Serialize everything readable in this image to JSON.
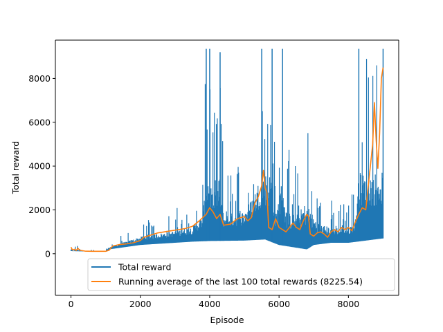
{
  "chart_data": {
    "type": "line",
    "title": "",
    "xlabel": "Episode",
    "ylabel": "Total reward",
    "xlim": [
      -450,
      9450
    ],
    "ylim": [
      -1900,
      9750
    ],
    "x_ticks": [
      0,
      2000,
      4000,
      6000,
      8000
    ],
    "x_tick_labels": [
      "0",
      "2000",
      "4000",
      "6000",
      "8000"
    ],
    "y_ticks": [
      0,
      2000,
      4000,
      6000,
      8000
    ],
    "y_tick_labels": [
      "0",
      "2000",
      "4000",
      "6000",
      "8000"
    ],
    "grid": false,
    "legend_position": "lower center",
    "series": [
      {
        "name": "Total reward",
        "color": "#1f77b4",
        "style": "noisy band",
        "lower_envelope": [
          [
            0,
            120
          ],
          [
            500,
            100
          ],
          [
            1000,
            100
          ],
          [
            1100,
            200
          ],
          [
            2000,
            400
          ],
          [
            3000,
            500
          ],
          [
            3500,
            550
          ],
          [
            4000,
            580
          ],
          [
            5000,
            600
          ],
          [
            5600,
            650
          ],
          [
            6000,
            400
          ],
          [
            6800,
            200
          ],
          [
            7000,
            400
          ],
          [
            7500,
            500
          ],
          [
            8000,
            500
          ],
          [
            8500,
            600
          ],
          [
            9000,
            700
          ]
        ],
        "upper_envelope": [
          [
            0,
            420
          ],
          [
            60,
            140
          ],
          [
            150,
            420
          ],
          [
            300,
            200
          ],
          [
            1000,
            200
          ],
          [
            1100,
            500
          ],
          [
            1500,
            900
          ],
          [
            2200,
            1700
          ],
          [
            2800,
            1900
          ],
          [
            3500,
            2500
          ],
          [
            3800,
            4000
          ],
          [
            3900,
            9350
          ],
          [
            4000,
            9350
          ],
          [
            4100,
            6000
          ],
          [
            4300,
            9200
          ],
          [
            4400,
            4000
          ],
          [
            5000,
            4500
          ],
          [
            5200,
            6000
          ],
          [
            5300,
            7000
          ],
          [
            5500,
            9350
          ],
          [
            5800,
            9350
          ],
          [
            5900,
            4200
          ],
          [
            6100,
            9350
          ],
          [
            6200,
            5000
          ],
          [
            6500,
            4500
          ],
          [
            6800,
            6500
          ],
          [
            7000,
            4000
          ],
          [
            7200,
            3000
          ],
          [
            7500,
            2500
          ],
          [
            7800,
            2500
          ],
          [
            8000,
            2500
          ],
          [
            8200,
            3500
          ],
          [
            8300,
            9350
          ],
          [
            9000,
            9350
          ]
        ]
      },
      {
        "name": "Running average of the last 100 total rewards (8225.54)",
        "color": "#ff7f0e",
        "points": [
          [
            0,
            300
          ],
          [
            40,
            180
          ],
          [
            100,
            200
          ],
          [
            150,
            150
          ],
          [
            200,
            250
          ],
          [
            250,
            160
          ],
          [
            400,
            120
          ],
          [
            600,
            110
          ],
          [
            800,
            110
          ],
          [
            1000,
            110
          ],
          [
            1100,
            160
          ],
          [
            1200,
            350
          ],
          [
            1400,
            420
          ],
          [
            1600,
            450
          ],
          [
            1800,
            500
          ],
          [
            2000,
            600
          ],
          [
            2100,
            750
          ],
          [
            2300,
            850
          ],
          [
            2500,
            950
          ],
          [
            2700,
            1000
          ],
          [
            2900,
            1050
          ],
          [
            3100,
            1100
          ],
          [
            3300,
            1150
          ],
          [
            3500,
            1250
          ],
          [
            3700,
            1500
          ],
          [
            3900,
            1800
          ],
          [
            4000,
            2100
          ],
          [
            4100,
            1900
          ],
          [
            4200,
            1600
          ],
          [
            4300,
            1800
          ],
          [
            4400,
            1300
          ],
          [
            4600,
            1350
          ],
          [
            4800,
            1600
          ],
          [
            5000,
            1700
          ],
          [
            5100,
            1500
          ],
          [
            5200,
            1650
          ],
          [
            5300,
            2300
          ],
          [
            5400,
            2600
          ],
          [
            5500,
            3100
          ],
          [
            5550,
            3800
          ],
          [
            5600,
            3000
          ],
          [
            5650,
            2800
          ],
          [
            5700,
            1200
          ],
          [
            5800,
            1100
          ],
          [
            5900,
            1600
          ],
          [
            6000,
            1200
          ],
          [
            6100,
            1100
          ],
          [
            6200,
            1000
          ],
          [
            6400,
            1400
          ],
          [
            6500,
            1200
          ],
          [
            6600,
            1100
          ],
          [
            6700,
            1500
          ],
          [
            6800,
            1800
          ],
          [
            6850,
            1700
          ],
          [
            6900,
            900
          ],
          [
            7000,
            800
          ],
          [
            7100,
            950
          ],
          [
            7200,
            1000
          ],
          [
            7300,
            900
          ],
          [
            7400,
            750
          ],
          [
            7500,
            1000
          ],
          [
            7600,
            1100
          ],
          [
            7700,
            1000
          ],
          [
            7800,
            1200
          ],
          [
            7900,
            1100
          ],
          [
            8000,
            1200
          ],
          [
            8100,
            1050
          ],
          [
            8200,
            1450
          ],
          [
            8300,
            1800
          ],
          [
            8400,
            2100
          ],
          [
            8500,
            2000
          ],
          [
            8600,
            3500
          ],
          [
            8700,
            5000
          ],
          [
            8750,
            6900
          ],
          [
            8800,
            5200
          ],
          [
            8850,
            3900
          ],
          [
            8900,
            5500
          ],
          [
            8950,
            8000
          ],
          [
            9000,
            8500
          ]
        ]
      }
    ]
  }
}
